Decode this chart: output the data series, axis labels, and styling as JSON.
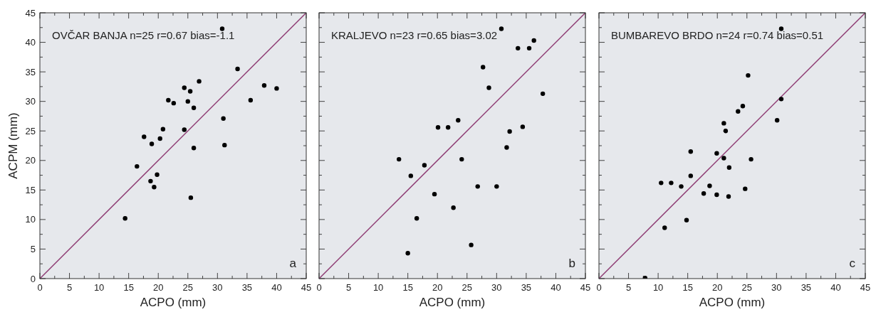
{
  "chart_data": [
    {
      "type": "scatter",
      "xlabel": "ACPO (mm)",
      "ylabel": "ACPM (mm)",
      "xlim": [
        0,
        45
      ],
      "ylim": [
        0,
        45
      ],
      "xticks": [
        0,
        {
          "value": 2.5,
          "label": null
        },
        5,
        {
          "value": 7.5,
          "label": null
        },
        10,
        {
          "value": 12.5,
          "label": null
        },
        15,
        {
          "value": 17.5,
          "label": null
        },
        20,
        {
          "value": 22.5,
          "label": null
        },
        25,
        {
          "value": 27.5,
          "label": null
        },
        30,
        {
          "value": 32.5,
          "label": null
        },
        35,
        {
          "value": 37.5,
          "label": null
        },
        40,
        {
          "value": 42.5,
          "label": null
        },
        45
      ],
      "yticks": [
        0,
        {
          "value": 2.5,
          "label": null
        },
        5,
        {
          "value": 7.5,
          "label": null
        },
        10,
        {
          "value": 12.5,
          "label": null
        },
        15,
        {
          "value": 17.5,
          "label": null
        },
        20,
        {
          "value": 22.5,
          "label": null
        },
        25,
        {
          "value": 27.5,
          "label": null
        },
        30,
        {
          "value": 32.5,
          "label": null
        },
        35,
        {
          "value": 37.5,
          "label": null
        },
        40,
        {
          "value": 42.5,
          "label": null
        },
        45
      ],
      "annotations": [
        "OVČAR BANJA n=25 r=0.67 bias=-1.1",
        "a"
      ],
      "series": [
        {
          "marker": "circle",
          "color": "#000000",
          "x": [
            14.4,
            16.4,
            17.6,
            18.9,
            18.7,
            19.3,
            19.8,
            20.3,
            20.8,
            21.7,
            22.6,
            24.4,
            24.4,
            25.4,
            25.0,
            26.0,
            26.0,
            25.5,
            26.9,
            30.8,
            31.0,
            31.2,
            33.4,
            35.6,
            37.9,
            40.0
          ],
          "values": [
            10.2,
            19.0,
            24.0,
            22.8,
            16.5,
            15.5,
            17.6,
            23.7,
            25.3,
            30.2,
            29.7,
            32.3,
            25.2,
            31.7,
            30.0,
            28.9,
            22.1,
            13.7,
            33.4,
            42.3,
            27.1,
            22.6,
            35.5,
            30.2,
            32.7,
            32.2
          ]
        },
        {
          "type": "line",
          "color": "#8e3b73",
          "x": [
            0,
            45
          ],
          "values": [
            0,
            45
          ]
        }
      ]
    },
    {
      "type": "scatter",
      "xlabel": "ACPO (mm)",
      "tick_labels": "x",
      "xlim": [
        0,
        45
      ],
      "ylim": [
        0,
        45
      ],
      "xticks": [
        0,
        {
          "value": 2.5,
          "label": null
        },
        5,
        {
          "value": 7.5,
          "label": null
        },
        10,
        {
          "value": 12.5,
          "label": null
        },
        15,
        {
          "value": 17.5,
          "label": null
        },
        20,
        {
          "value": 22.5,
          "label": null
        },
        25,
        {
          "value": 27.5,
          "label": null
        },
        30,
        {
          "value": 32.5,
          "label": null
        },
        35,
        {
          "value": 37.5,
          "label": null
        },
        40,
        {
          "value": 42.5,
          "label": null
        },
        45
      ],
      "yticks": [
        0,
        {
          "value": 2.5,
          "label": null
        },
        5,
        {
          "value": 7.5,
          "label": null
        },
        10,
        {
          "value": 12.5,
          "label": null
        },
        15,
        {
          "value": 17.5,
          "label": null
        },
        20,
        {
          "value": 22.5,
          "label": null
        },
        25,
        {
          "value": 27.5,
          "label": null
        },
        30,
        {
          "value": 32.5,
          "label": null
        },
        35,
        {
          "value": 37.5,
          "label": null
        },
        40,
        {
          "value": 42.5,
          "label": null
        },
        45
      ],
      "annotations": [
        "KRALJEVO n=23 r=0.65 bias=3.02",
        "b"
      ],
      "series": [
        {
          "marker": "circle",
          "color": "#000000",
          "x": [
            13.5,
            15.0,
            15.5,
            16.5,
            17.8,
            19.5,
            20.1,
            21.8,
            22.7,
            23.5,
            24.1,
            25.7,
            26.8,
            27.7,
            28.7,
            30.0,
            30.8,
            31.7,
            32.2,
            33.6,
            34.4,
            35.5,
            36.3,
            37.8
          ],
          "values": [
            20.2,
            4.3,
            17.4,
            10.2,
            19.2,
            14.3,
            25.6,
            25.6,
            12.0,
            26.8,
            20.2,
            5.7,
            15.6,
            35.8,
            32.3,
            15.6,
            42.3,
            22.2,
            24.9,
            39.0,
            25.7,
            39.0,
            40.3,
            31.3
          ]
        },
        {
          "type": "line",
          "color": "#8e3b73",
          "x": [
            0,
            45
          ],
          "values": [
            0,
            45
          ]
        }
      ]
    },
    {
      "type": "scatter",
      "xlabel": "ACPO (mm)",
      "tick_labels": "x",
      "xlim": [
        0,
        45
      ],
      "ylim": [
        0,
        45
      ],
      "xticks": [
        0,
        {
          "value": 2.5,
          "label": null
        },
        5,
        {
          "value": 7.5,
          "label": null
        },
        10,
        {
          "value": 12.5,
          "label": null
        },
        15,
        {
          "value": 17.5,
          "label": null
        },
        20,
        {
          "value": 22.5,
          "label": null
        },
        25,
        {
          "value": 27.5,
          "label": null
        },
        30,
        {
          "value": 32.5,
          "label": null
        },
        35,
        {
          "value": 37.5,
          "label": null
        },
        40,
        {
          "value": 42.5,
          "label": null
        },
        45
      ],
      "yticks": [
        0,
        {
          "value": 2.5,
          "label": null
        },
        5,
        {
          "value": 7.5,
          "label": null
        },
        10,
        {
          "value": 12.5,
          "label": null
        },
        15,
        {
          "value": 17.5,
          "label": null
        },
        20,
        {
          "value": 22.5,
          "label": null
        },
        25,
        {
          "value": 27.5,
          "label": null
        },
        30,
        {
          "value": 32.5,
          "label": null
        },
        35,
        {
          "value": 37.5,
          "label": null
        },
        40,
        {
          "value": 42.5,
          "label": null
        },
        45
      ],
      "annotations": [
        "BUMBAREVO BRDO n=24 r=0.74 bias=0.51",
        "c"
      ],
      "series": [
        {
          "marker": "circle",
          "color": "#000000",
          "x": [
            7.8,
            10.5,
            11.1,
            12.2,
            13.9,
            14.8,
            15.5,
            15.5,
            17.7,
            18.7,
            19.9,
            19.9,
            21.1,
            21.1,
            21.4,
            21.9,
            22.0,
            23.5,
            24.3,
            24.7,
            25.2,
            25.7,
            30.1,
            30.8,
            30.8
          ],
          "values": [
            0.1,
            16.2,
            8.6,
            16.2,
            15.6,
            9.9,
            17.4,
            21.5,
            14.4,
            15.7,
            14.2,
            21.2,
            20.4,
            26.3,
            25.0,
            13.9,
            18.8,
            28.3,
            29.2,
            15.2,
            34.4,
            20.2,
            26.8,
            42.3,
            30.4
          ]
        },
        {
          "type": "line",
          "color": "#8e3b73",
          "x": [
            0,
            45
          ],
          "values": [
            0,
            45
          ]
        }
      ]
    }
  ]
}
